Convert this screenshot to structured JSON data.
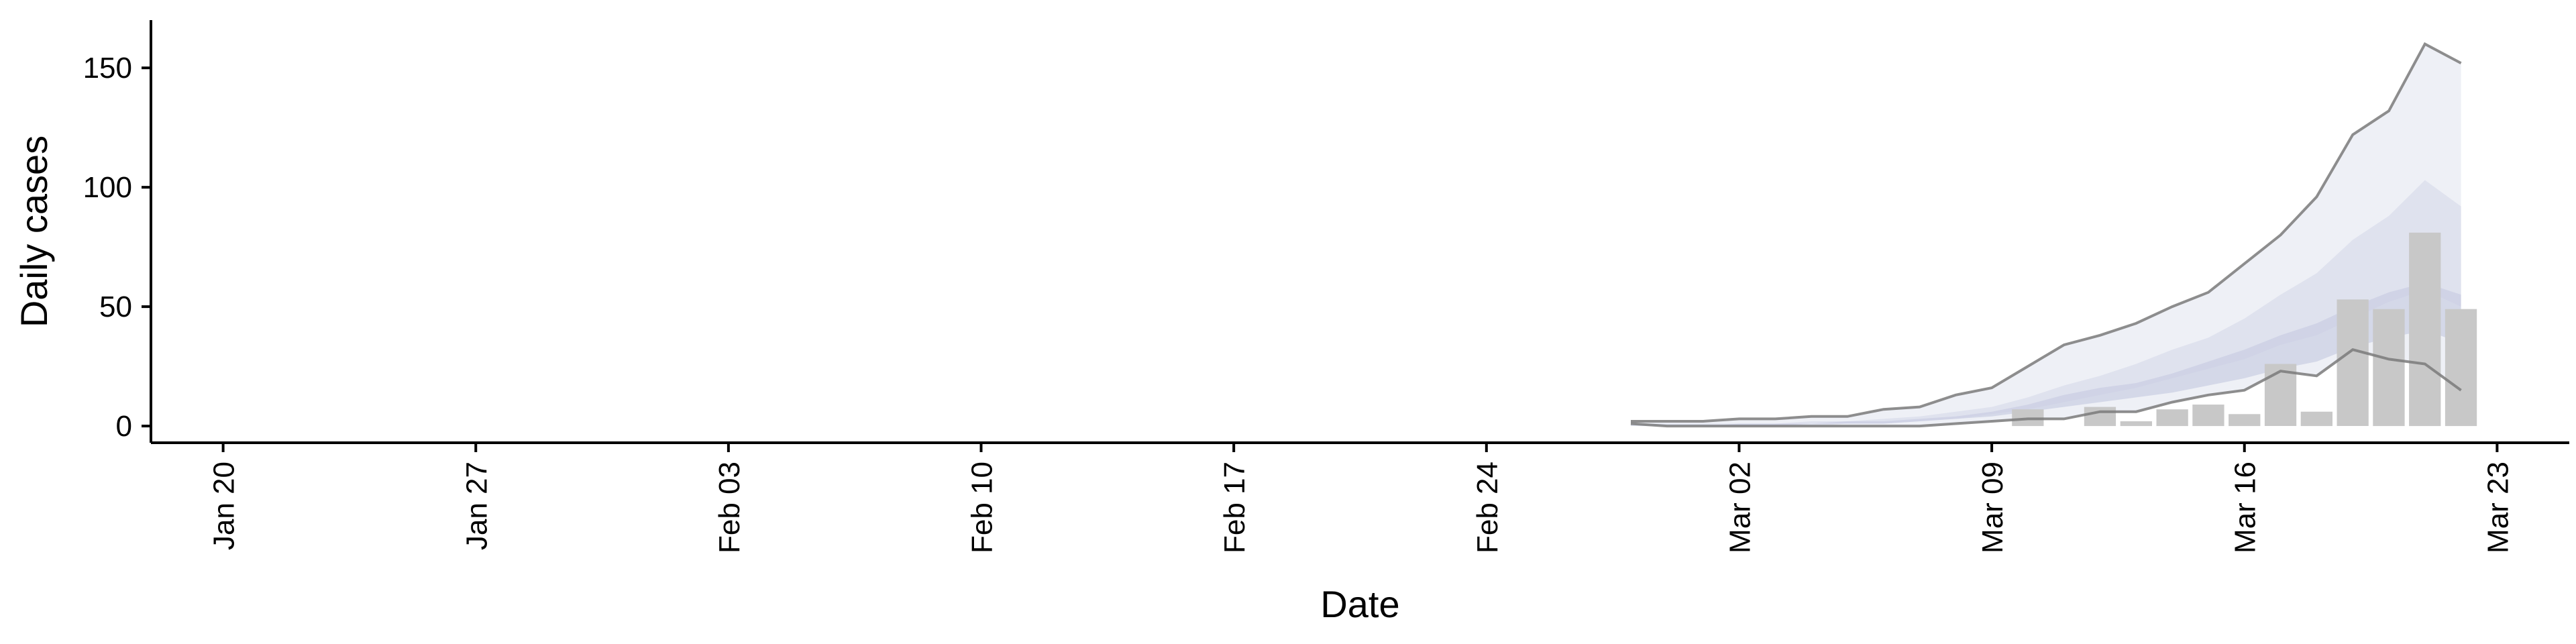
{
  "chart_data": {
    "type": "bar",
    "xlabel": "Date",
    "ylabel": "Daily cases",
    "ylim": [
      -7,
      170
    ],
    "xlim": [
      "2020-01-18",
      "2020-03-25"
    ],
    "yticks": [
      0,
      50,
      100,
      150
    ],
    "xticks": [
      "2020-01-20",
      "2020-01-27",
      "2020-02-03",
      "2020-02-10",
      "2020-02-17",
      "2020-02-24",
      "2020-03-02",
      "2020-03-09",
      "2020-03-16",
      "2020-03-23"
    ],
    "xtick_labels": [
      "Jan 20",
      "Jan 27",
      "Feb 03",
      "Feb 10",
      "Feb 17",
      "Feb 24",
      "Mar 02",
      "Mar 09",
      "Mar 16",
      "Mar 23"
    ],
    "dates": [
      "2020-02-28",
      "2020-02-29",
      "2020-03-01",
      "2020-03-02",
      "2020-03-03",
      "2020-03-04",
      "2020-03-05",
      "2020-03-06",
      "2020-03-07",
      "2020-03-08",
      "2020-03-09",
      "2020-03-10",
      "2020-03-11",
      "2020-03-12",
      "2020-03-13",
      "2020-03-14",
      "2020-03-15",
      "2020-03-16",
      "2020-03-17",
      "2020-03-18",
      "2020-03-19",
      "2020-03-20",
      "2020-03-21",
      "2020-03-22"
    ],
    "bars": [
      {
        "date": "2020-03-10",
        "value": 7
      },
      {
        "date": "2020-03-11",
        "value": 0
      },
      {
        "date": "2020-03-12",
        "value": 8
      },
      {
        "date": "2020-03-13",
        "value": 2
      },
      {
        "date": "2020-03-14",
        "value": 7
      },
      {
        "date": "2020-03-15",
        "value": 9
      },
      {
        "date": "2020-03-16",
        "value": 5
      },
      {
        "date": "2020-03-17",
        "value": 26
      },
      {
        "date": "2020-03-18",
        "value": 6
      },
      {
        "date": "2020-03-19",
        "value": 53
      },
      {
        "date": "2020-03-20",
        "value": 49
      },
      {
        "date": "2020-03-21",
        "value": 81
      },
      {
        "date": "2020-03-22",
        "value": 49
      }
    ],
    "bands": {
      "outer_upper": [
        2,
        2,
        2,
        3,
        3,
        4,
        4,
        7,
        8,
        13,
        16,
        25,
        34,
        38,
        43,
        50,
        56,
        68,
        80,
        96,
        122,
        132,
        160,
        152
      ],
      "outer_lower": [
        1,
        0,
        0,
        0,
        0,
        0,
        0,
        0,
        0,
        1,
        2,
        3,
        3,
        6,
        6,
        10,
        13,
        15,
        23,
        21,
        32,
        28,
        26,
        15
      ],
      "mid_upper": [
        1,
        1,
        1,
        1,
        1,
        2,
        2,
        3,
        4,
        6,
        8,
        12,
        17,
        21,
        26,
        32,
        37,
        45,
        55,
        64,
        78,
        88,
        103,
        92
      ],
      "mid_lower": [
        0,
        0,
        0,
        0,
        0,
        0,
        1,
        1,
        2,
        3,
        5,
        7,
        10,
        13,
        16,
        20,
        24,
        28,
        34,
        38,
        45,
        52,
        57,
        50
      ],
      "inner_upper": [
        0,
        0,
        0,
        1,
        1,
        1,
        2,
        2,
        3,
        4,
        6,
        9,
        13,
        16,
        18,
        22,
        27,
        32,
        38,
        43,
        50,
        56,
        60,
        55
      ],
      "inner_lower": [
        0,
        0,
        0,
        0,
        0,
        1,
        1,
        1,
        2,
        3,
        4,
        6,
        8,
        10,
        12,
        14,
        17,
        20,
        24,
        27,
        33,
        37,
        40,
        35
      ]
    },
    "colors": {
      "bar": "#c8c8c8",
      "band_outer": "#eef0f6",
      "band_mid": "#dfe2ee",
      "band_inner": "#c9cde2",
      "line": "#7a7a7a",
      "axis": "#000000"
    }
  }
}
